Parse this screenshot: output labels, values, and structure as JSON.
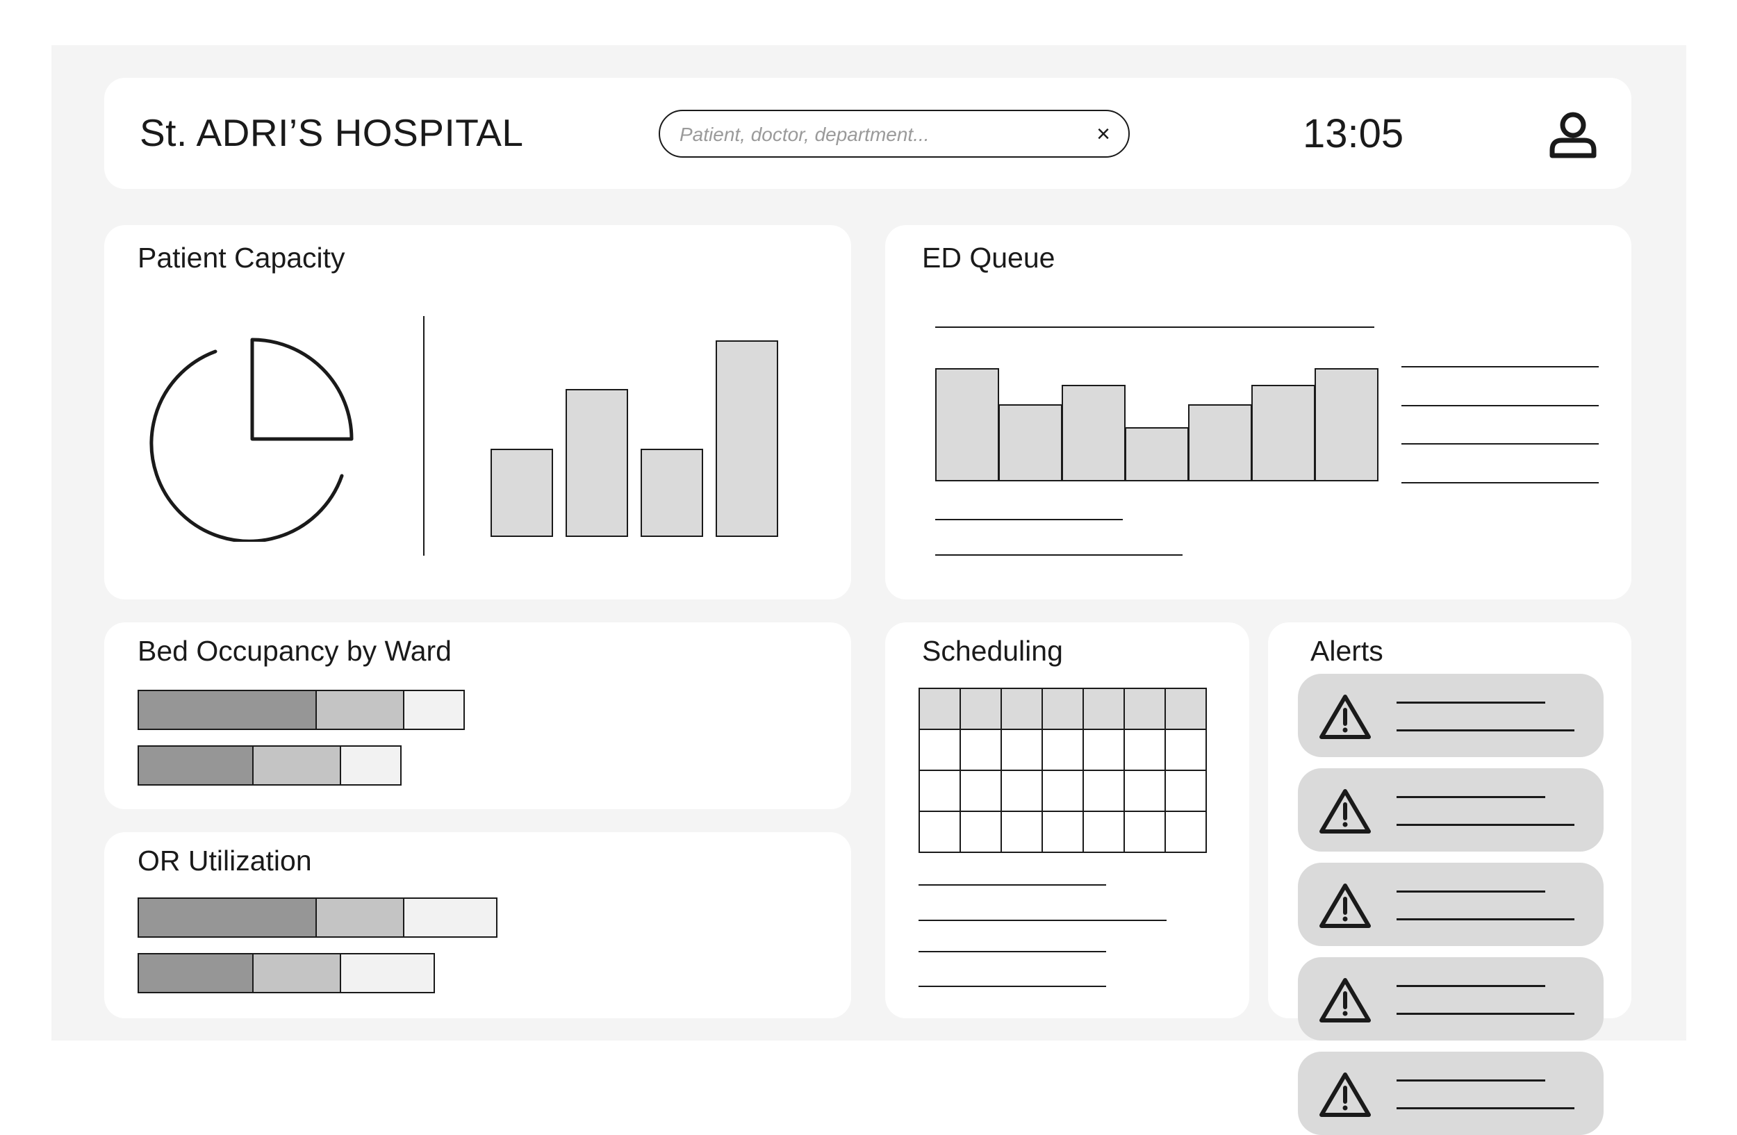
{
  "header": {
    "hospital_name": "St. ADRI’S HOSPITAL",
    "search_placeholder": "Patient, doctor, department...",
    "clear_label": "×",
    "clock": "13:05",
    "user_icon": "user-icon"
  },
  "patient_capacity": {
    "title": "Patient Capacity",
    "pie_icon": "pie-chart-icon",
    "chart_data": {
      "type": "bar",
      "categories": [
        "",
        "",
        "",
        ""
      ],
      "values": [
        40,
        67,
        40,
        89
      ],
      "ylim": [
        0,
        100
      ]
    }
  },
  "ed_queue": {
    "title": "ED Queue",
    "chart_data": {
      "type": "bar",
      "categories": [
        "",
        "",
        "",
        "",
        "",
        "",
        ""
      ],
      "values": [
        100,
        68,
        85,
        48,
        68,
        85,
        100
      ],
      "ylim": [
        0,
        100
      ]
    }
  },
  "bed_occupancy": {
    "title": "Bed Occupancy by Ward",
    "rows": [
      {
        "segments": [
          256,
          126,
          87
        ]
      },
      {
        "segments": [
          165,
          126,
          87
        ]
      }
    ]
  },
  "or_utilization": {
    "title": "OR Utilization",
    "rows": [
      {
        "segments": [
          256,
          126,
          134
        ]
      },
      {
        "segments": [
          165,
          126,
          135
        ]
      }
    ]
  },
  "scheduling": {
    "title": "Scheduling",
    "columns": 7,
    "rows": 4
  },
  "alerts": {
    "title": "Alerts",
    "icon": "warning-icon",
    "count": 5
  },
  "colors": {
    "frame_bg": "#f4f4f4",
    "card_bg": "#ffffff",
    "bar_fill": "#dadada",
    "seg_dark": "#969696",
    "seg_mid": "#c4c4c4",
    "seg_light": "#f2f2f2",
    "stroke": "#1a1a1a"
  }
}
